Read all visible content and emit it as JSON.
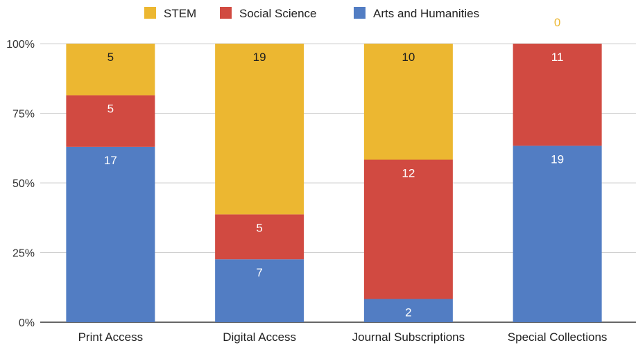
{
  "chart_data": {
    "type": "bar",
    "stacked": "percent",
    "categories": [
      "Print Access",
      "Digital Access",
      "Journal Subscriptions",
      "Special Collections"
    ],
    "series": [
      {
        "name": "Arts and Humanities",
        "color": "#527dc3",
        "label_color": "#ffffff",
        "values": [
          17,
          7,
          2,
          19
        ]
      },
      {
        "name": "Social Science",
        "color": "#d14a41",
        "label_color": "#ffffff",
        "values": [
          5,
          5,
          12,
          11
        ]
      },
      {
        "name": "STEM",
        "color": "#ecb731",
        "label_color": "#1f1f1f",
        "values": [
          5,
          19,
          10,
          0
        ]
      }
    ],
    "legend_order": [
      "STEM",
      "Social Science",
      "Arts and Humanities"
    ],
    "yticks": [
      "0%",
      "25%",
      "50%",
      "75%",
      "100%"
    ],
    "ylim": [
      0,
      100
    ],
    "grid": true,
    "legend_position": "top",
    "title": "",
    "xlabel": "",
    "ylabel": ""
  }
}
